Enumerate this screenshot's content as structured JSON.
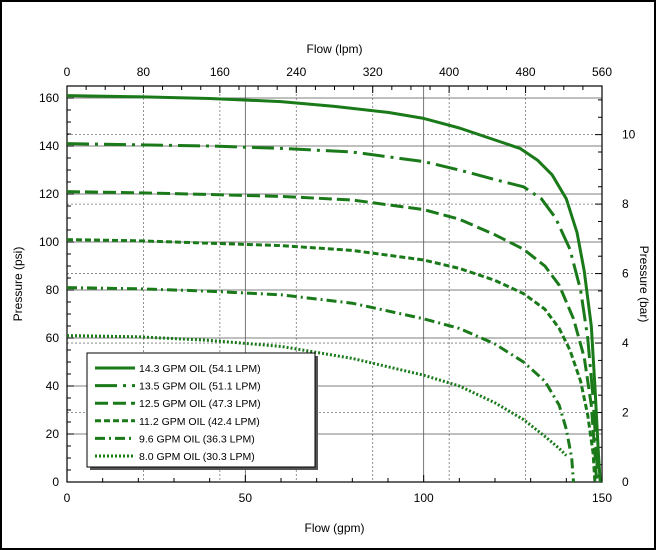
{
  "chart_data": {
    "type": "line",
    "x_bottom": {
      "label": "Flow (gpm)",
      "range": [
        0,
        150
      ],
      "ticks": [
        "0",
        "50",
        "100",
        "150"
      ]
    },
    "x_top": {
      "label": "Flow (lpm)",
      "range": [
        0,
        560
      ],
      "ticks": [
        "0",
        "80",
        "160",
        "240",
        "320",
        "400",
        "480",
        "560"
      ]
    },
    "y_left": {
      "label": "Pressure (psi)",
      "range": [
        0,
        165
      ],
      "ticks": [
        "0",
        "20",
        "40",
        "60",
        "80",
        "100",
        "120",
        "140",
        "160"
      ]
    },
    "y_right": {
      "label": "Pressure (bar)",
      "range": [
        0,
        11.4
      ],
      "ticks": [
        "0",
        "2",
        "4",
        "6",
        "8",
        "10"
      ]
    },
    "grid": true,
    "legend_position": "bottom-left",
    "line_color": "#1a7a1a",
    "series": [
      {
        "name": "14.3 GPM OIL (54.1 LPM)",
        "dash": "solid",
        "points": [
          [
            0,
            161
          ],
          [
            20,
            160.5
          ],
          [
            40,
            159.8
          ],
          [
            60,
            158.5
          ],
          [
            75,
            156.5
          ],
          [
            90,
            154
          ],
          [
            100,
            151.5
          ],
          [
            110,
            147.5
          ],
          [
            120,
            142.5
          ],
          [
            127,
            139
          ],
          [
            132,
            134
          ],
          [
            136,
            128
          ],
          [
            140,
            118
          ],
          [
            143,
            104
          ],
          [
            145,
            88
          ],
          [
            147,
            65
          ],
          [
            148,
            40
          ],
          [
            149,
            12
          ],
          [
            149.5,
            0
          ]
        ]
      },
      {
        "name": "13.5 GPM OIL (51.1 LPM)",
        "dash": "long-dash",
        "points": [
          [
            0,
            141
          ],
          [
            20,
            140.5
          ],
          [
            40,
            140
          ],
          [
            60,
            139
          ],
          [
            80,
            137.5
          ],
          [
            100,
            133.5
          ],
          [
            110,
            130
          ],
          [
            120,
            126
          ],
          [
            128,
            123
          ],
          [
            133,
            118
          ],
          [
            137,
            110
          ],
          [
            141,
            97
          ],
          [
            144,
            80
          ],
          [
            146,
            60
          ],
          [
            147.5,
            35
          ],
          [
            148.5,
            10
          ],
          [
            149,
            0
          ]
        ]
      },
      {
        "name": "12.5 GPM OIL (47.3 LPM)",
        "dash": "dash",
        "points": [
          [
            0,
            121
          ],
          [
            20,
            120.5
          ],
          [
            40,
            119.8
          ],
          [
            60,
            119
          ],
          [
            80,
            117.5
          ],
          [
            100,
            113.5
          ],
          [
            110,
            109.5
          ],
          [
            120,
            103
          ],
          [
            128,
            97
          ],
          [
            134,
            90
          ],
          [
            138,
            82
          ],
          [
            142,
            68
          ],
          [
            145,
            52
          ],
          [
            147,
            32
          ],
          [
            148,
            12
          ],
          [
            148.5,
            0
          ]
        ]
      },
      {
        "name": "11.2 GPM OIL (42.4 LPM)",
        "dash": "short-dash",
        "points": [
          [
            0,
            101
          ],
          [
            20,
            100.5
          ],
          [
            40,
            99.5
          ],
          [
            60,
            98.5
          ],
          [
            80,
            96.5
          ],
          [
            100,
            92.5
          ],
          [
            110,
            89
          ],
          [
            120,
            84
          ],
          [
            128,
            78.5
          ],
          [
            134,
            72
          ],
          [
            138,
            64
          ],
          [
            141,
            55
          ],
          [
            144,
            42
          ],
          [
            146,
            28
          ],
          [
            147.5,
            12
          ],
          [
            148,
            0
          ]
        ]
      },
      {
        "name": "9.6 GPM OIL (36.3 LPM)",
        "dash": "dash-dot",
        "points": [
          [
            0,
            81
          ],
          [
            20,
            80.5
          ],
          [
            40,
            79.5
          ],
          [
            60,
            78
          ],
          [
            80,
            74.5
          ],
          [
            100,
            68
          ],
          [
            110,
            64
          ],
          [
            120,
            57.5
          ],
          [
            128,
            50
          ],
          [
            134,
            42
          ],
          [
            138,
            32
          ],
          [
            140,
            22
          ],
          [
            141.5,
            10
          ],
          [
            142,
            0
          ]
        ]
      },
      {
        "name": "8.0 GPM OIL (30.3 LPM)",
        "dash": "dot",
        "points": [
          [
            0,
            61
          ],
          [
            20,
            60.5
          ],
          [
            40,
            59
          ],
          [
            60,
            56.5
          ],
          [
            80,
            51.5
          ],
          [
            100,
            44.5
          ],
          [
            110,
            40
          ],
          [
            120,
            33
          ],
          [
            128,
            26
          ],
          [
            134,
            19
          ],
          [
            138,
            14
          ],
          [
            140,
            11
          ]
        ]
      }
    ]
  }
}
